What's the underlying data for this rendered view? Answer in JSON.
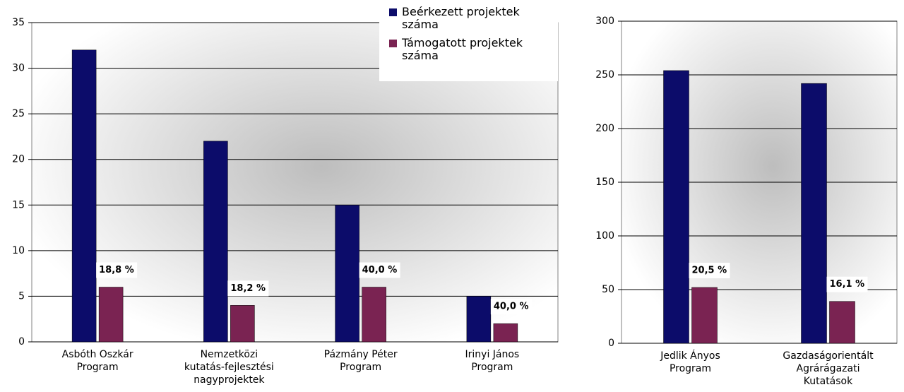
{
  "chart_data": [
    {
      "type": "bar",
      "categories": [
        [
          "Asbóth Oszkár",
          "Program"
        ],
        [
          "Nemzetközi",
          "kutatás-fejlesztési",
          "nagyprojektek"
        ],
        [
          "Pázmány Péter",
          "Program"
        ],
        [
          "Irinyi János",
          "Program"
        ]
      ],
      "series": [
        {
          "name": "Beérkezett projektek száma",
          "color": "#0c0c6a",
          "values": [
            32,
            22,
            15,
            5
          ]
        },
        {
          "name": "Támogatott projektek száma",
          "color": "#7a2352",
          "values": [
            6,
            4,
            6,
            2
          ]
        }
      ],
      "annotations": [
        "18,8 %",
        "18,2 %",
        "40,0 %",
        "40,0 %"
      ],
      "ylim": [
        0,
        35
      ],
      "yticks": [
        0,
        5,
        10,
        15,
        20,
        25,
        30,
        35
      ],
      "grid": true
    },
    {
      "type": "bar",
      "categories": [
        [
          "Jedlik Ányos",
          "Program"
        ],
        [
          "Gazdaságorientált",
          "Agrárágazati",
          "Kutatások"
        ]
      ],
      "series": [
        {
          "color": "#0c0c6a",
          "values": [
            254,
            242
          ]
        },
        {
          "color": "#7a2352",
          "values": [
            52,
            39
          ]
        }
      ],
      "annotations": [
        "20,5 %",
        "16,1 %"
      ],
      "ylim": [
        0,
        300
      ],
      "yticks": [
        0,
        50,
        100,
        150,
        200,
        250,
        300
      ],
      "grid": true
    }
  ]
}
